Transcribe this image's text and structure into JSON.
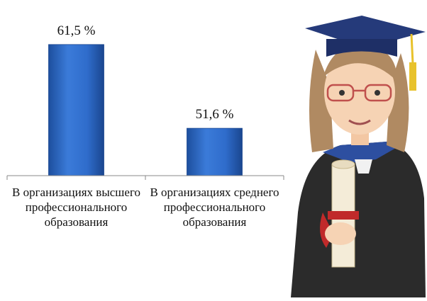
{
  "chart_data": {
    "type": "bar",
    "categories": [
      "В организациях высшего профессионального образования",
      "В организациях среднего профессионального образования"
    ],
    "values": [
      61.5,
      51.6
    ],
    "value_labels": [
      "61,5 %",
      "51,6 %"
    ],
    "color": "#2f6ccb",
    "ylim": [
      46,
      64
    ]
  }
}
